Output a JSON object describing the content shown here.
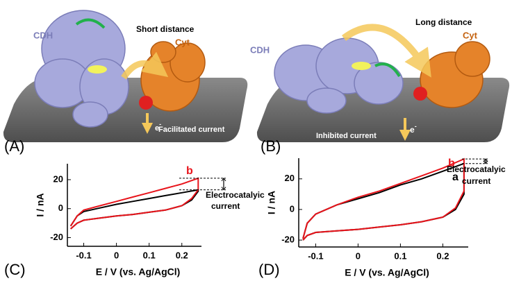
{
  "panels": {
    "A": {
      "label": "(A)",
      "cdh": "CDH",
      "cyt": "Cyt",
      "distance": "Short distance",
      "current": "Facilitated current",
      "electron": "e",
      "charge": "-"
    },
    "B": {
      "label": "(B)",
      "cdh": "CDH",
      "cyt": "Cyt",
      "distance": "Long distance",
      "current": "Inhibited current",
      "electron": "e",
      "charge": "-"
    }
  },
  "chart_data": [
    {
      "type": "line",
      "panel": "(C)",
      "x_label": "E / V (vs. Ag/AgCl)",
      "y_label": "I / nA",
      "xlim": [
        -0.15,
        0.26
      ],
      "ylim": [
        -26,
        31
      ],
      "xticks": [
        -0.1,
        0,
        0.1,
        0.2
      ],
      "yticks": [
        -20,
        0,
        20
      ],
      "annotation": [
        "Electrocatalyic",
        "current"
      ],
      "series": [
        {
          "color": "#000000",
          "x": [
            -0.14,
            -0.12,
            -0.1,
            -0.05,
            0,
            0.05,
            0.1,
            0.15,
            0.2,
            0.23,
            0.25,
            0.25,
            0.2,
            0.15,
            0.1,
            0.05,
            0,
            -0.05,
            -0.1,
            -0.12,
            -0.14
          ],
          "values": [
            -14,
            -10,
            -8,
            -6.5,
            -5,
            -4,
            -2.5,
            -1,
            2,
            6,
            12,
            13,
            11,
            9,
            7,
            5,
            3,
            0.5,
            -2,
            -5,
            -12
          ]
        },
        {
          "name": "b",
          "color": "#e8141b",
          "x": [
            -0.14,
            -0.12,
            -0.1,
            -0.05,
            0,
            0.05,
            0.1,
            0.15,
            0.2,
            0.23,
            0.25,
            0.25,
            0.2,
            0.15,
            0.1,
            0.05,
            0,
            -0.05,
            -0.1,
            -0.12,
            -0.14
          ],
          "values": [
            -14,
            -10,
            -8,
            -6.5,
            -5,
            -4,
            -2.5,
            -1,
            2,
            7,
            13,
            21,
            17,
            14,
            11,
            8,
            5,
            2,
            -1,
            -5,
            -12
          ]
        }
      ]
    },
    {
      "type": "line",
      "panel": "(D)",
      "x_label": "E / V (vs. Ag/AgCl)",
      "y_label": "I / nA",
      "xlim": [
        -0.14,
        0.26
      ],
      "ylim": [
        -24.5,
        33.5
      ],
      "xticks": [
        -0.1,
        0,
        0.1,
        0.2
      ],
      "yticks": [
        -20,
        0,
        20
      ],
      "annotation": [
        "Electrocatalyic",
        "current"
      ],
      "series": [
        {
          "name": "a",
          "color": "#000000",
          "x": [
            -0.13,
            -0.12,
            -0.1,
            -0.05,
            0,
            0.05,
            0.1,
            0.15,
            0.2,
            0.23,
            0.25,
            0.25,
            0.2,
            0.15,
            0.1,
            0.05,
            0,
            -0.05,
            -0.1,
            -0.12,
            -0.13
          ],
          "values": [
            -20,
            -17,
            -15,
            -14,
            -13,
            -11.5,
            -10,
            -8,
            -5,
            0,
            10,
            30,
            25,
            20,
            16,
            11,
            7,
            3,
            -3,
            -9,
            -19
          ]
        },
        {
          "name": "b",
          "color": "#e8141b",
          "x": [
            -0.13,
            -0.12,
            -0.1,
            -0.05,
            0,
            0.05,
            0.1,
            0.15,
            0.2,
            0.23,
            0.25,
            0.25,
            0.2,
            0.15,
            0.1,
            0.05,
            0,
            -0.05,
            -0.1,
            -0.12,
            -0.13
          ],
          "values": [
            -20,
            -17,
            -15,
            -14,
            -13,
            -11.5,
            -10,
            -8,
            -5,
            1,
            12,
            33,
            27,
            22,
            17,
            12,
            8,
            3,
            -3,
            -9,
            -19
          ]
        }
      ]
    }
  ]
}
